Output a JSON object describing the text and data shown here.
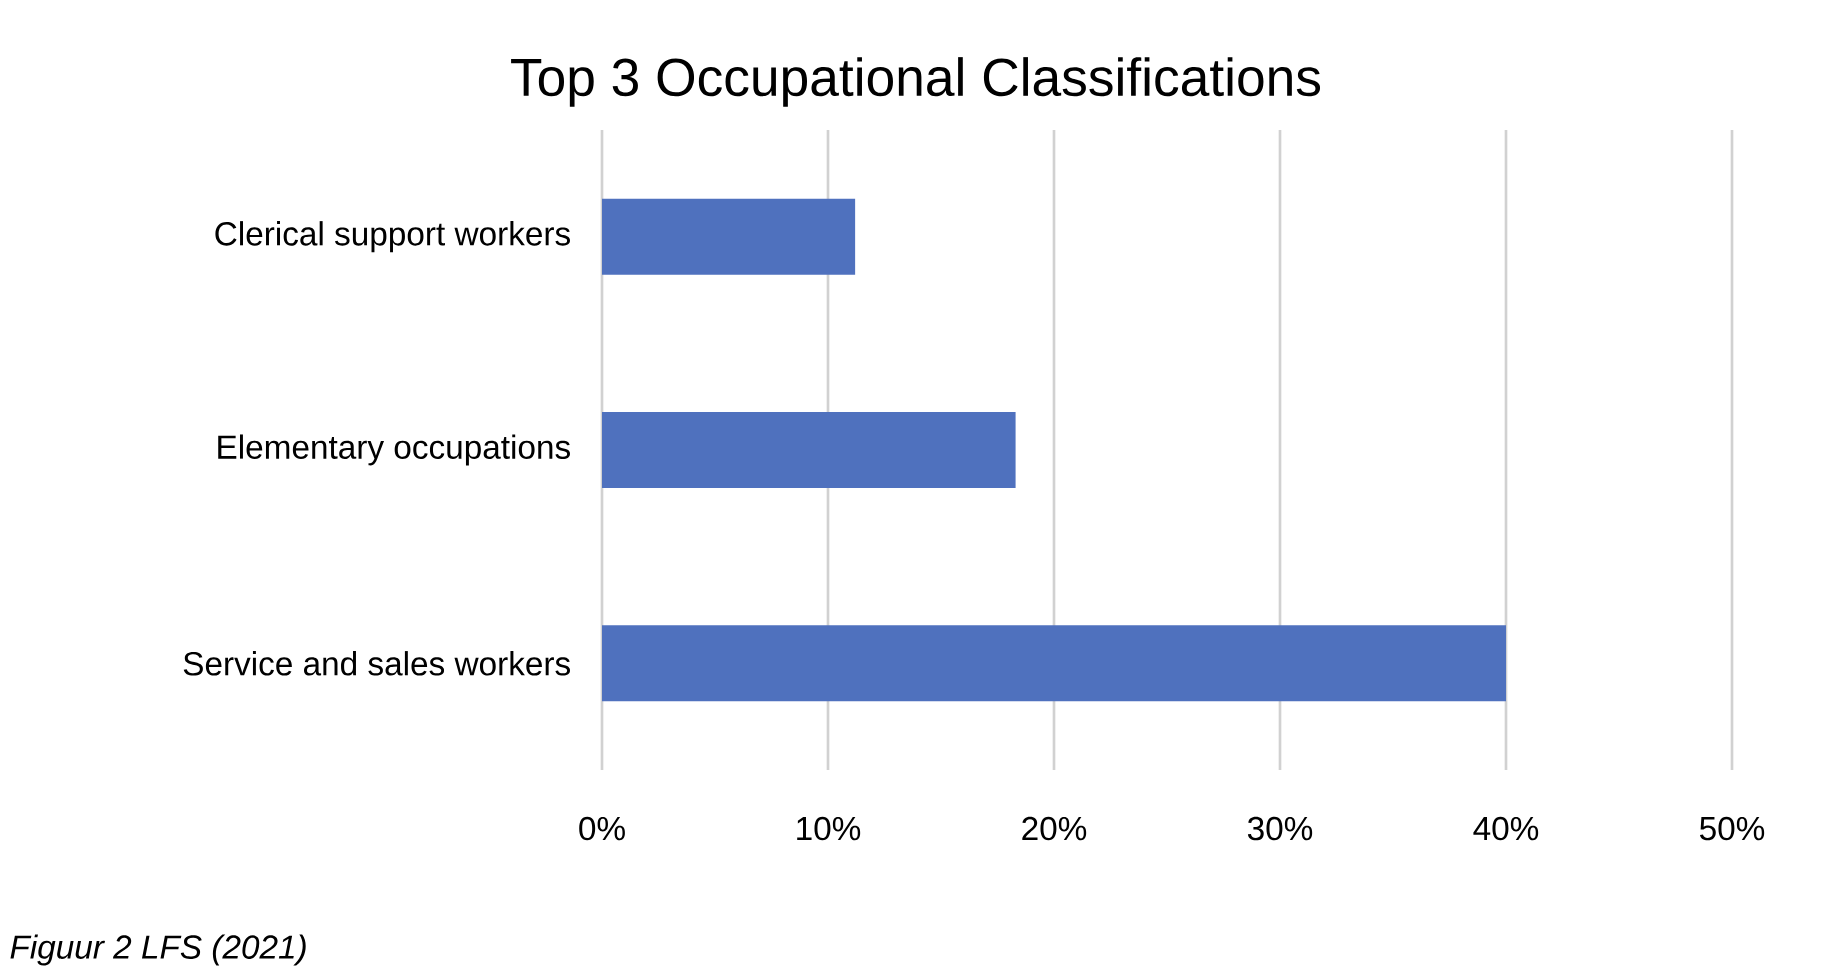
{
  "chart_data": {
    "type": "bar",
    "orientation": "horizontal",
    "title": "Top 3 Occupational Classifications",
    "categories": [
      "Clerical support workers",
      "Elementary occupations",
      "Service and sales workers"
    ],
    "values": [
      11.2,
      18.3,
      40.0
    ],
    "color": "#4f71be",
    "xlim": [
      0,
      50
    ],
    "xticks": [
      {
        "value": 0,
        "label": "0%"
      },
      {
        "value": 10,
        "label": "10%"
      },
      {
        "value": 20,
        "label": "20%"
      },
      {
        "value": 30,
        "label": "30%"
      },
      {
        "value": 40,
        "label": "40%"
      },
      {
        "value": 50,
        "label": "50%"
      }
    ],
    "grid": "x",
    "annotations": [
      "Figuur 2 LFS (2021)"
    ]
  }
}
